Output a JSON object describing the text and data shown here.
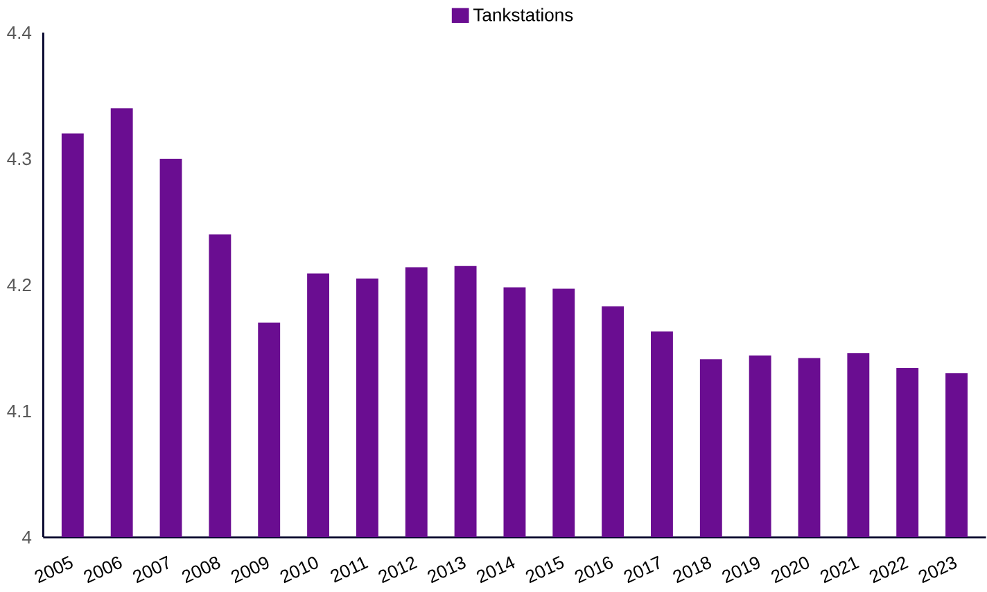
{
  "chart_data": {
    "type": "bar",
    "categories": [
      "2005",
      "2006",
      "2007",
      "2008",
      "2009",
      "2010",
      "2011",
      "2012",
      "2013",
      "2014",
      "2015",
      "2016",
      "2017",
      "2018",
      "2019",
      "2020",
      "2021",
      "2022",
      "2023"
    ],
    "series": [
      {
        "name": "Tankstations",
        "color": "#6a0d91",
        "values": [
          4.32,
          4.34,
          4.3,
          4.24,
          4.17,
          4.209,
          4.205,
          4.214,
          4.215,
          4.198,
          4.197,
          4.183,
          4.163,
          4.141,
          4.144,
          4.142,
          4.146,
          4.134,
          4.13
        ]
      }
    ],
    "ylim": [
      4,
      4.4
    ],
    "yticks": [
      4,
      4.1,
      4.2,
      4.3,
      4.4
    ],
    "legend": "top",
    "grid": false
  }
}
